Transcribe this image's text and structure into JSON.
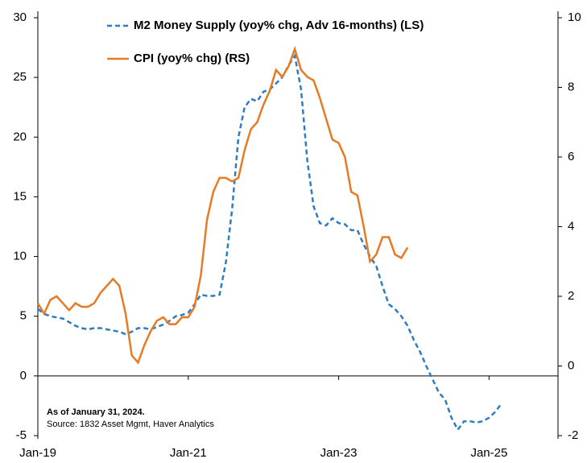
{
  "chart_data": {
    "type": "line",
    "x": [
      "2019-01",
      "2019-02",
      "2019-03",
      "2019-04",
      "2019-05",
      "2019-06",
      "2019-07",
      "2019-08",
      "2019-09",
      "2019-10",
      "2019-11",
      "2019-12",
      "2020-01",
      "2020-02",
      "2020-03",
      "2020-04",
      "2020-05",
      "2020-06",
      "2020-07",
      "2020-08",
      "2020-09",
      "2020-10",
      "2020-11",
      "2020-12",
      "2021-01",
      "2021-02",
      "2021-03",
      "2021-04",
      "2021-05",
      "2021-06",
      "2021-07",
      "2021-08",
      "2021-09",
      "2021-10",
      "2021-11",
      "2021-12",
      "2022-01",
      "2022-02",
      "2022-03",
      "2022-04",
      "2022-05",
      "2022-06",
      "2022-07",
      "2022-08",
      "2022-09",
      "2022-10",
      "2022-11",
      "2022-12",
      "2023-01",
      "2023-02",
      "2023-03",
      "2023-04",
      "2023-05",
      "2023-06",
      "2023-07",
      "2023-08",
      "2023-09",
      "2023-10",
      "2023-11",
      "2023-12",
      "2024-01",
      "2024-02",
      "2024-03",
      "2024-04",
      "2024-05",
      "2024-06",
      "2024-07",
      "2024-08",
      "2024-09",
      "2024-10",
      "2024-11",
      "2024-12",
      "2025-01",
      "2025-02",
      "2025-03"
    ],
    "series": [
      {
        "name": "M2 Money Supply (yoy% chg, Adv 16-months) (LS)",
        "color": "#2e7cc2",
        "dashed": true,
        "values": [
          5.6,
          5.2,
          5.0,
          4.9,
          4.8,
          4.5,
          4.2,
          4.0,
          3.9,
          4.0,
          4.0,
          3.9,
          3.8,
          3.7,
          3.5,
          3.7,
          4.0,
          4.0,
          3.9,
          4.1,
          4.3,
          4.6,
          5.0,
          5.1,
          5.3,
          6.0,
          6.8,
          6.7,
          6.7,
          6.8,
          9.5,
          14.0,
          20.0,
          22.5,
          23.2,
          23.0,
          23.8,
          24.0,
          24.5,
          25.0,
          26.0,
          26.8,
          24.0,
          18.0,
          14.2,
          12.8,
          12.6,
          13.2,
          12.8,
          12.7,
          12.2,
          12.2,
          11.0,
          10.0,
          9.2,
          7.5,
          6.0,
          5.6,
          5.0,
          4.2,
          3.0,
          2.0,
          0.8,
          -0.3,
          -1.4,
          -2.0,
          -3.5,
          -4.5,
          -3.8,
          -3.8,
          -3.9,
          -3.8,
          -3.5,
          -3.0,
          -2.3
        ]
      },
      {
        "name": "CPI (yoy% chg) (RS)",
        "color": "#e57b25",
        "axis": "y2",
        "values": [
          1.8,
          1.5,
          1.9,
          2.0,
          1.8,
          1.6,
          1.8,
          1.7,
          1.7,
          1.8,
          2.1,
          2.3,
          2.5,
          2.3,
          1.5,
          0.3,
          0.1,
          0.6,
          1.0,
          1.3,
          1.4,
          1.2,
          1.2,
          1.4,
          1.4,
          1.7,
          2.6,
          4.2,
          5.0,
          5.4,
          5.4,
          5.3,
          5.4,
          6.2,
          6.8,
          7.0,
          7.5,
          7.9,
          8.5,
          8.3,
          8.6,
          9.1,
          8.5,
          8.3,
          8.2,
          7.7,
          7.1,
          6.5,
          6.4,
          6.0,
          5.0,
          4.9,
          4.0,
          3.0,
          3.2,
          3.7,
          3.7,
          3.2,
          3.1,
          3.4,
          null,
          null,
          null,
          null,
          null,
          null,
          null,
          null,
          null,
          null,
          null,
          null,
          null,
          null,
          null
        ]
      }
    ],
    "xlim": [
      "2019-01",
      "2025-12"
    ],
    "xticks": [
      {
        "value": "2019-01",
        "label": "Jan-19"
      },
      {
        "value": "2021-01",
        "label": "Jan-21"
      },
      {
        "value": "2023-01",
        "label": "Jan-23"
      },
      {
        "value": "2025-01",
        "label": "Jan-25"
      }
    ],
    "ylim": [
      -5,
      30
    ],
    "yticks": [
      -5,
      0,
      5,
      10,
      15,
      20,
      25,
      30
    ],
    "y2lim": [
      -2,
      10
    ],
    "y2ticks": [
      -2,
      0,
      2,
      4,
      6,
      8,
      10
    ],
    "notes": [
      "As of January 31, 2024.",
      "Source: 1832 Asset Mgmt, Haver Analytics"
    ]
  }
}
